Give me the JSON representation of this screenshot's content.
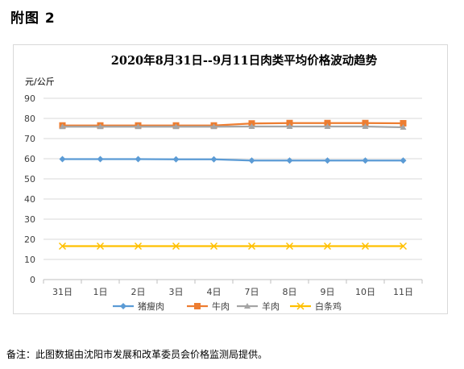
{
  "page": {
    "heading": "附图 2",
    "footnote": "备注：此图数据由沈阳市发展和改革委员会价格监测局提供。"
  },
  "chart_data": {
    "type": "line",
    "title": "2020年8月31日--9月11日肉类平均价格波动趋势",
    "ylabel": "元/公斤",
    "xlabel": "",
    "categories": [
      "31日",
      "1日",
      "2日",
      "3日",
      "4日",
      "7日",
      "8日",
      "9日",
      "10日",
      "11日"
    ],
    "yticks": [
      "0",
      "10",
      "20",
      "30",
      "40",
      "50",
      "60",
      "70",
      "80",
      "90"
    ],
    "ylim": [
      0,
      90
    ],
    "grid": true,
    "legend": "bottom",
    "series": [
      {
        "name": "猪瘦肉",
        "color": "#5b9bd5",
        "marker": "diamond",
        "values": [
          59.8,
          59.8,
          59.8,
          59.7,
          59.7,
          59.1,
          59.1,
          59.1,
          59.1,
          59.1
        ]
      },
      {
        "name": "牛肉",
        "color": "#ed7d31",
        "marker": "square",
        "values": [
          76.5,
          76.5,
          76.5,
          76.5,
          76.5,
          77.5,
          77.7,
          77.7,
          77.7,
          77.6
        ]
      },
      {
        "name": "羊肉",
        "color": "#a5a5a5",
        "marker": "triangle",
        "values": [
          75.9,
          75.9,
          75.9,
          75.9,
          75.9,
          76.0,
          76.0,
          76.0,
          76.0,
          75.6
        ]
      },
      {
        "name": "白条鸡",
        "color": "#ffc000",
        "marker": "x",
        "values": [
          16.6,
          16.6,
          16.6,
          16.6,
          16.6,
          16.6,
          16.6,
          16.6,
          16.6,
          16.6
        ]
      }
    ]
  }
}
